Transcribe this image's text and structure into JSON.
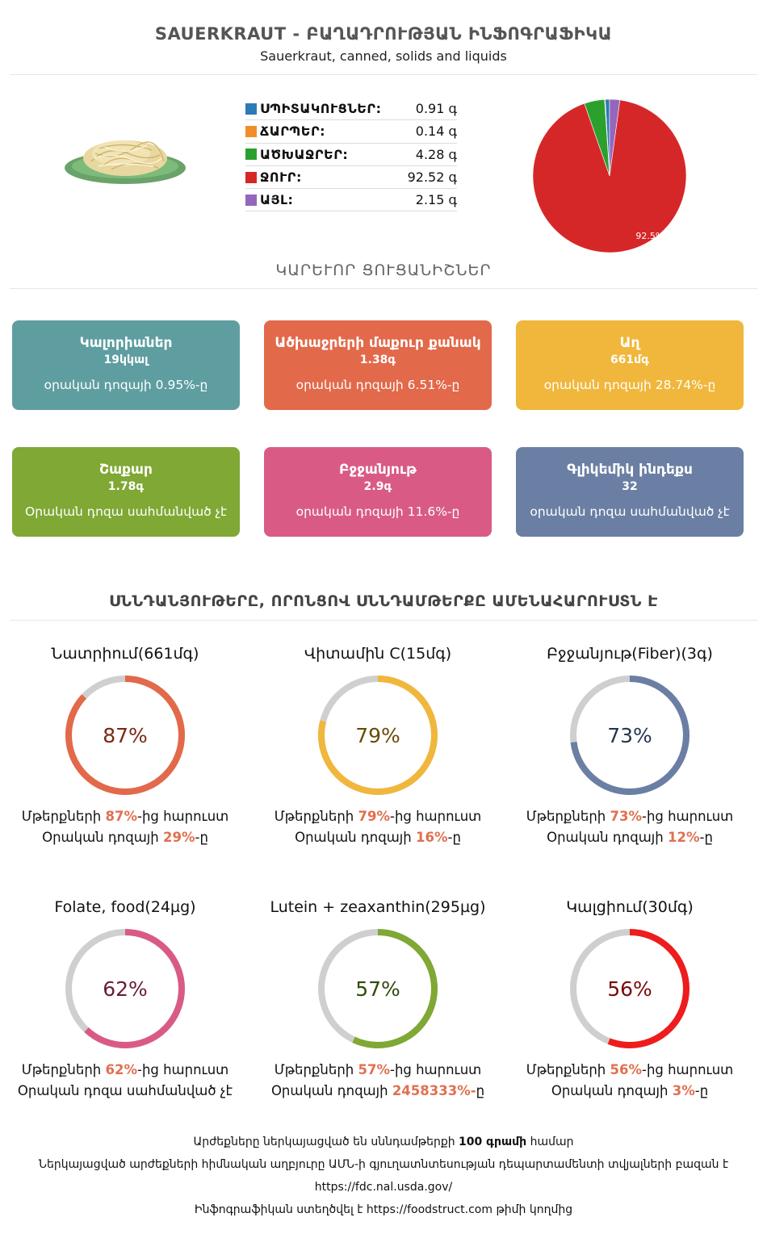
{
  "header": {
    "title": "SAUERKRAUT - ԲԱՂԱԴՐՈՒԹՅԱՆ ԻՆՖՈԳՐԱՖԻԿԱ",
    "subtitle": "Sauerkraut, canned, solids and liquids"
  },
  "food_image": {
    "icon": "sauerkraut-plate-icon"
  },
  "macros": [
    {
      "name": "ՍՊԻՏԱԿՈՒՑՆԵՐ:",
      "value": "0.91 գ",
      "color": "#2c7bb6"
    },
    {
      "name": "ՃԱՐՊԵՐ:",
      "value": "0.14 գ",
      "color": "#f28c28"
    },
    {
      "name": "ԱԾԽԱՋՐԵՐ:",
      "value": "4.28 գ",
      "color": "#2ca02c"
    },
    {
      "name": "ՋՈՒՐ:",
      "value": "92.52 գ",
      "color": "#d62728"
    },
    {
      "name": "ԱՅԼ:",
      "value": "2.15 գ",
      "color": "#9467bd"
    }
  ],
  "chart_data": {
    "type": "pie",
    "slices": [
      {
        "label": "ՍՊԻՏԱԿՈՒՑՆԵՐ",
        "value": 0.91,
        "color": "#2c7bb6"
      },
      {
        "label": "ՃԱՐՊԵՐ",
        "value": 0.14,
        "color": "#f28c28"
      },
      {
        "label": "ԱԾԽԱՋՐԵՐ",
        "value": 4.28,
        "color": "#2ca02c"
      },
      {
        "label": "ՋՈՒՐ",
        "value": 92.52,
        "color": "#d62728"
      },
      {
        "label": "ԱՅԼ",
        "value": 2.15,
        "color": "#9467bd"
      }
    ],
    "data_labels": {
      "ՋՈՒՐ": "92.5%"
    },
    "legend": "left"
  },
  "key_title": "ԿԱՐԵՒՈՐ ՑՈՒՑԱՆԻՇՆԵՐ",
  "key_cards": [
    {
      "name": "Կալորիաներ",
      "amount": "19կկալ",
      "daily": "օրական դոզայի 0.95%-ը",
      "color": "#5f9ea0"
    },
    {
      "name": "Ածխաջրերի մաքուր քանակ",
      "amount": "1.38գ",
      "daily": "օրական դոզայի 6.51%-ը",
      "color": "#e2694a"
    },
    {
      "name": "Աղ",
      "amount": "661մգ",
      "daily": "օրական դոզայի 28.74%-ը",
      "color": "#f0b73c"
    },
    {
      "name": "Շաքար",
      "amount": "1.78գ",
      "daily": "Օրական դոզա սահմանված չէ",
      "color": "#7fa834"
    },
    {
      "name": "Բջջանյութ",
      "amount": "2.9գ",
      "daily": "օրական դոզայի 11.6%-ը",
      "color": "#d95b85"
    },
    {
      "name": "Գլիկեմիկ ինդեքս",
      "amount": "32",
      "daily": "օրական դոզա սահմանված չէ",
      "color": "#6a7fa3"
    }
  ],
  "foods_title": "ՍՆՆԴԱՆՅՈՒԹԵՐԸ, ՈՐՈՆՑՈՎ ՍՆՆԴԱՄԹԵՐՔԸ ԱՄԵՆԱՀԱՐՈՒՍՏՆ Է",
  "nutrients": [
    {
      "name": "Նատրիում(661մգ)",
      "percent": 87,
      "percent_label": "87%",
      "color": "#e2694a",
      "text_color": "#7a2a14",
      "line1_pre": "Մթերքների ",
      "line1_pct": "87%",
      "line1_post": "-ից հարուստ",
      "line2_pre": "Օրական դոզայի ",
      "line2_pct": "29%",
      "line2_post": "-ը"
    },
    {
      "name": "Վիտամին C(15մգ)",
      "percent": 79,
      "percent_label": "79%",
      "color": "#f0b73c",
      "text_color": "#6b4a06",
      "line1_pre": "Մթերքների ",
      "line1_pct": "79%",
      "line1_post": "-ից հարուստ",
      "line2_pre": "Օրական դոզայի ",
      "line2_pct": "16%",
      "line2_post": "-ը"
    },
    {
      "name": "Բջջանյութ(Fiber)(3գ)",
      "percent": 73,
      "percent_label": "73%",
      "color": "#6a7fa3",
      "text_color": "#263650",
      "line1_pre": "Մթերքների ",
      "line1_pct": "73%",
      "line1_post": "-ից հարուստ",
      "line2_pre": "Օրական դոզայի ",
      "line2_pct": "12%",
      "line2_post": "-ը"
    },
    {
      "name": "Folate, food(24µg)",
      "percent": 62,
      "percent_label": "62%",
      "color": "#d95b85",
      "text_color": "#6a1d38",
      "line1_pre": "Մթերքների ",
      "line1_pct": "62%",
      "line1_post": "-ից հարուստ",
      "line2_pre": "Օրական դոզա սահմանված չէ",
      "line2_pct": "",
      "line2_post": ""
    },
    {
      "name": "Lutein + zeaxanthin(295µg)",
      "percent": 57,
      "percent_label": "57%",
      "color": "#7fa834",
      "text_color": "#2f4a0c",
      "line1_pre": "Մթերքների ",
      "line1_pct": "57%",
      "line1_post": "-ից հարուստ",
      "line2_pre": "Օրական դոզայի ",
      "line2_pct": "2458333%-",
      "line2_post": "ը"
    },
    {
      "name": "Կալցիում(30մգ)",
      "percent": 56,
      "percent_label": "56%",
      "color": "#ee1c1c",
      "text_color": "#7a0a0a",
      "line1_pre": "Մթերքների ",
      "line1_pct": "56%",
      "line1_post": "-ից հարուստ",
      "line2_pre": "Օրական դոզայի ",
      "line2_pct": "3%",
      "line2_post": "-ը"
    }
  ],
  "footer": {
    "line1_pre": "Արժեքները ներկայացված են սննդամթերքի ",
    "line1_bold": "100 գրամի",
    "line1_post": " համար",
    "line2": "Ներկայացված արժեքների հիմնական աղբյուրը ԱՄՆ-ի գյուղատնտեսության դեպարտամենտի տվյալների բազան է",
    "line3": "https://fdc.nal.usda.gov/",
    "line4_pre": "Ինֆոգրաֆիկան ստեղծվել է ",
    "line4_link": "https://foodstruct.com",
    "line4_post": " թիմի կողմից"
  }
}
